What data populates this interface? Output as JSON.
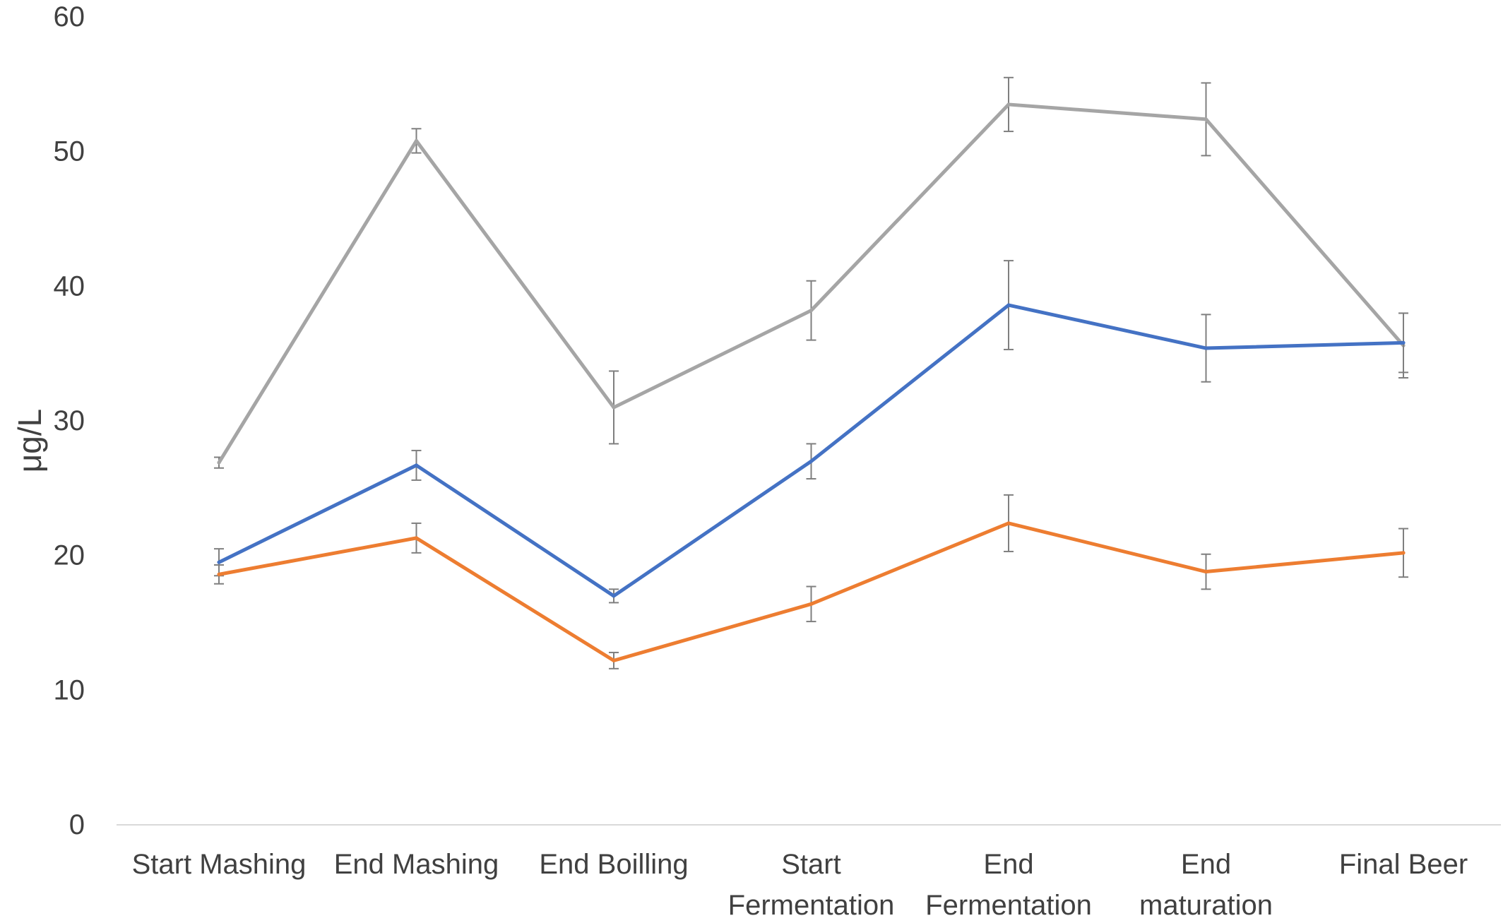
{
  "chart_data": {
    "type": "line",
    "title": "",
    "xlabel": "",
    "ylabel": "μg/L",
    "ylim": [
      0,
      60
    ],
    "yticks": [
      "0",
      "10",
      "20",
      "30",
      "40",
      "50",
      "60"
    ],
    "categories": [
      [
        "Start Mashing"
      ],
      [
        "End Mashing"
      ],
      [
        "End Boilling"
      ],
      [
        "Start",
        "Fermentation"
      ],
      [
        "End",
        "Fermentation"
      ],
      [
        "End",
        "maturation"
      ],
      [
        "Final Beer"
      ]
    ],
    "grid": false,
    "legend": "none",
    "error_bars": true,
    "series": [
      {
        "color": "#a5a5a5",
        "values": [
          26.9,
          50.8,
          31.0,
          38.2,
          53.5,
          52.4,
          35.6
        ],
        "errors": [
          0.4,
          0.9,
          2.7,
          2.2,
          2.0,
          2.7,
          2.4
        ]
      },
      {
        "color": "#4472c4",
        "values": [
          19.5,
          26.7,
          17.0,
          27.0,
          38.6,
          35.4,
          35.8
        ],
        "errors": [
          1.0,
          1.1,
          0.5,
          1.3,
          3.3,
          2.5,
          2.2
        ]
      },
      {
        "color": "#ed7d31",
        "values": [
          18.6,
          21.3,
          12.2,
          16.4,
          22.4,
          18.8,
          20.2
        ],
        "errors": [
          0.7,
          1.1,
          0.6,
          1.3,
          2.1,
          1.3,
          1.8
        ]
      }
    ]
  }
}
